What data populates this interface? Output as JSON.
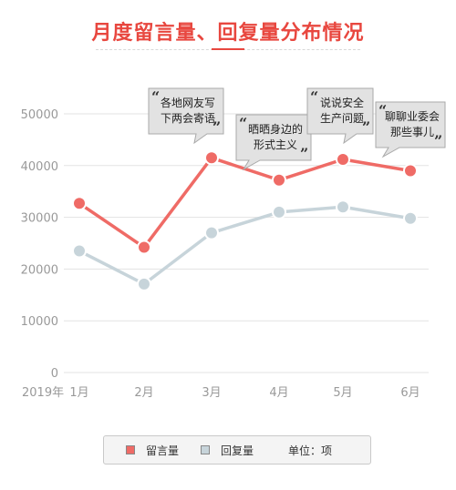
{
  "title": "月度留言量、回复量分布情况",
  "legend": {
    "unit_label": "单位：项"
  },
  "colors": {
    "series_1": "#ef6b66",
    "series_2": "#c7d4da",
    "title": "#e8473f",
    "grid": "#e3e3e3"
  },
  "chart_data": {
    "type": "line",
    "year_label": "2019年",
    "categories": [
      "1月",
      "2月",
      "3月",
      "4月",
      "5月",
      "6月"
    ],
    "series": [
      {
        "name": "留言量",
        "values": [
          32700,
          24200,
          41500,
          37200,
          41200,
          39000
        ]
      },
      {
        "name": "回复量",
        "values": [
          23500,
          17100,
          27000,
          31000,
          32000,
          29800
        ]
      }
    ],
    "ylim": [
      0,
      50000
    ],
    "yticks": [
      0,
      10000,
      20000,
      30000,
      40000,
      50000
    ],
    "grid": true,
    "legend_position": "bottom",
    "annotations": [
      {
        "category": "2月",
        "lines": [
          "各地网友写",
          "下两会寄语"
        ]
      },
      {
        "category": "3月",
        "lines": [
          "晒晒身边的",
          "形式主义"
        ]
      },
      {
        "category": "4月",
        "lines": [
          "说说安全",
          "生产问题"
        ]
      },
      {
        "category": "5月",
        "lines": [
          "聊聊业委会",
          "那些事儿"
        ]
      }
    ]
  }
}
